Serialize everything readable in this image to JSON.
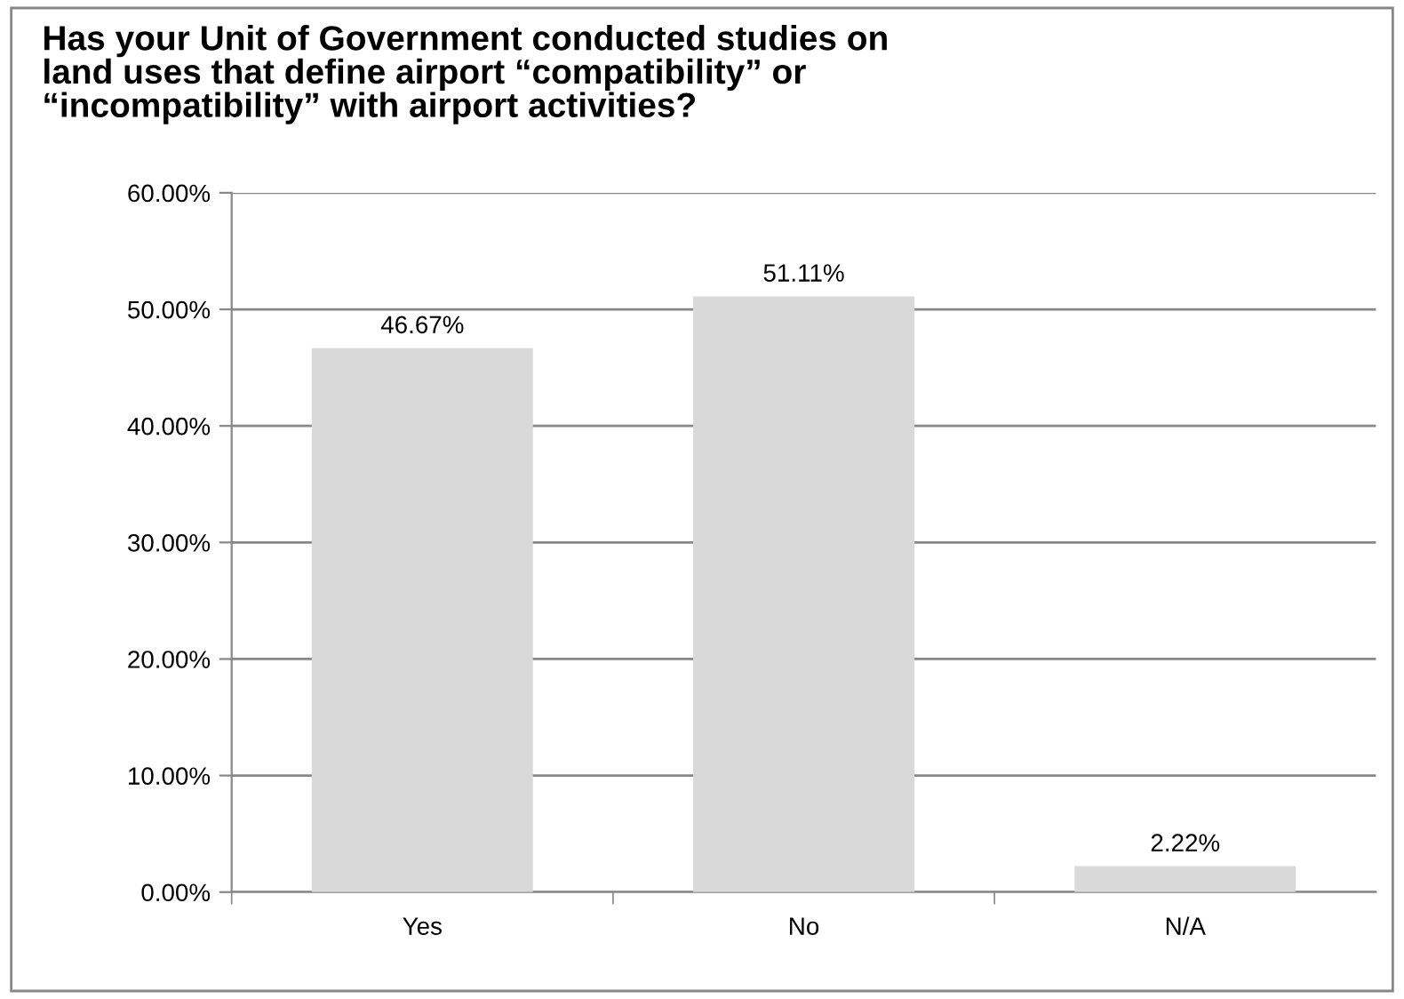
{
  "chart_data": {
    "type": "bar",
    "title": "Has your Unit of Government conducted studies on\nland uses that define airport “compatibility” or\n“incompatibility” with airport activities?",
    "categories": [
      "Yes",
      "No",
      "N/A"
    ],
    "values": [
      46.67,
      51.11,
      2.22
    ],
    "color": "#d9d9d9",
    "value_labels": [
      "46.67%",
      "51.11%",
      "2.22%"
    ],
    "ylim": [
      0,
      60
    ],
    "yticks": [
      {
        "value": 0,
        "label": "0.00%"
      },
      {
        "value": 10,
        "label": "10.00%"
      },
      {
        "value": 20,
        "label": "20.00%"
      },
      {
        "value": 30,
        "label": "30.00%"
      },
      {
        "value": 40,
        "label": "40.00%"
      },
      {
        "value": 50,
        "label": "50.00%"
      },
      {
        "value": 60,
        "label": "60.00%"
      }
    ],
    "grid": "y",
    "legend": false
  }
}
